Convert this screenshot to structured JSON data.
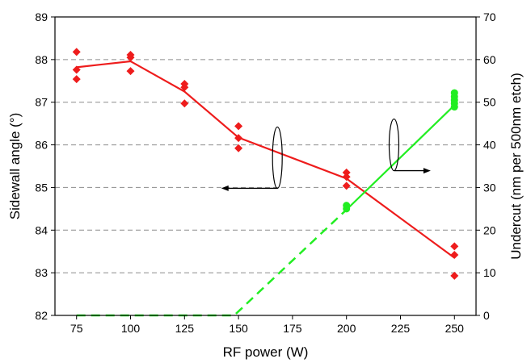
{
  "chart_data": {
    "type": "scatter",
    "title": "",
    "xlabel": "RF power (W)",
    "ylabel_left": "Sidewall angle (°)",
    "ylabel_right": "Undercut (nm per 500nm etch)",
    "xlim": [
      65,
      260
    ],
    "ylim_left": [
      82,
      89
    ],
    "ylim_right": [
      0,
      70
    ],
    "x_ticks": [
      75,
      100,
      125,
      150,
      175,
      200,
      225,
      250
    ],
    "y_ticks_left": [
      82,
      83,
      84,
      85,
      86,
      87,
      88,
      89
    ],
    "y_ticks_right": [
      0,
      10,
      20,
      30,
      40,
      50,
      60,
      70
    ],
    "grid": "horizontal dashed",
    "series": [
      {
        "name": "Sidewall angle",
        "axis": "left",
        "color": "#ee1c1c",
        "marker": "diamond",
        "points": [
          {
            "x": 75,
            "y": 88.18
          },
          {
            "x": 75,
            "y": 87.76
          },
          {
            "x": 75,
            "y": 87.54
          },
          {
            "x": 100,
            "y": 88.11
          },
          {
            "x": 100,
            "y": 88.05
          },
          {
            "x": 100,
            "y": 87.73
          },
          {
            "x": 125,
            "y": 87.43
          },
          {
            "x": 125,
            "y": 87.35
          },
          {
            "x": 125,
            "y": 86.97
          },
          {
            "x": 150,
            "y": 86.44
          },
          {
            "x": 150,
            "y": 86.16
          },
          {
            "x": 150,
            "y": 85.92
          },
          {
            "x": 200,
            "y": 85.35
          },
          {
            "x": 200,
            "y": 85.25
          },
          {
            "x": 200,
            "y": 85.04
          },
          {
            "x": 250,
            "y": 83.62
          },
          {
            "x": 250,
            "y": 83.42
          },
          {
            "x": 250,
            "y": 82.93
          }
        ],
        "line": {
          "x": [
            75,
            100,
            125,
            150,
            200,
            250
          ],
          "y": [
            87.82,
            87.96,
            87.25,
            86.17,
            85.21,
            83.35
          ],
          "style": "solid"
        }
      },
      {
        "name": "Undercut",
        "axis": "right",
        "color": "#22ee22",
        "marker": "circle",
        "points": [
          {
            "x": 200,
            "y": 25.8
          },
          {
            "x": 200,
            "y": 25.0
          },
          {
            "x": 250,
            "y": 52.2
          },
          {
            "x": 250,
            "y": 51.3
          },
          {
            "x": 250,
            "y": 50.5
          },
          {
            "x": 250,
            "y": 49.7
          },
          {
            "x": 250,
            "y": 48.9
          }
        ],
        "line_dashed": {
          "x": [
            75,
            148,
            200
          ],
          "y": [
            0,
            0,
            24.8
          ]
        },
        "line_solid": {
          "x": [
            200,
            250
          ],
          "y": [
            24.8,
            49.3
          ]
        }
      }
    ],
    "annotations": [
      {
        "type": "ellipse-arrow",
        "points_to": "left axis",
        "near_x": 168,
        "near_y_left": 85.7
      },
      {
        "type": "ellipse-arrow",
        "points_to": "right axis",
        "near_x": 222,
        "near_y_right": 40
      }
    ]
  }
}
